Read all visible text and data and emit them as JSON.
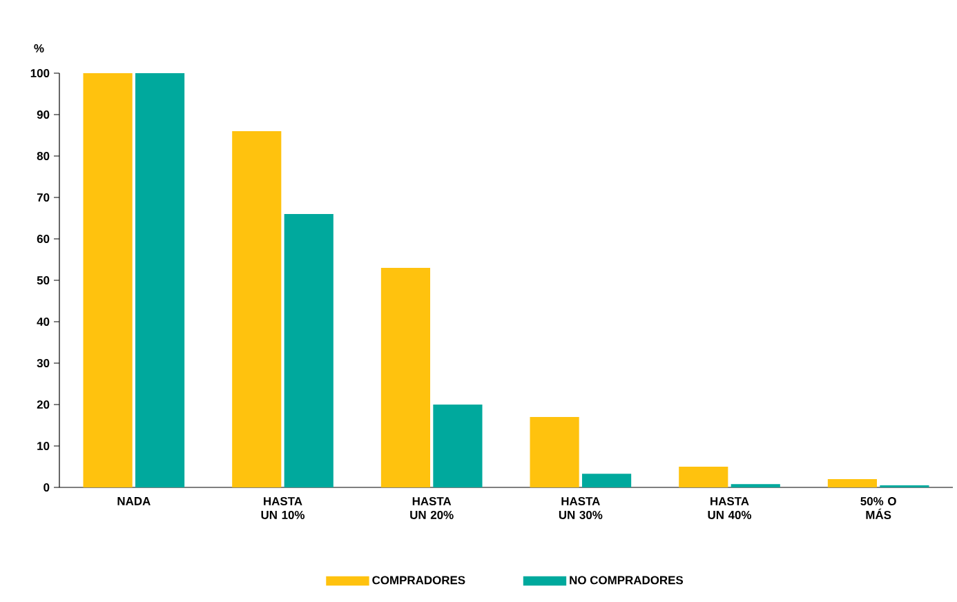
{
  "chart_data": {
    "type": "bar",
    "ylabel": "%",
    "categories": [
      "NADA",
      "HASTA UN 10%",
      "HASTA UN 20%",
      "HASTA UN 30%",
      "HASTA UN 40%",
      "50% O MÁS"
    ],
    "series": [
      {
        "name": "COMPRADORES",
        "color": "#ffc20e",
        "values": [
          100,
          86,
          53,
          17,
          5,
          2
        ]
      },
      {
        "name": "NO COMPRADORES",
        "color": "#00a99d",
        "values": [
          100,
          66,
          20,
          3.3,
          0.8,
          0.5
        ]
      }
    ],
    "ylim": [
      0,
      100
    ],
    "yticks": [
      0,
      10,
      20,
      30,
      40,
      50,
      60,
      70,
      80,
      90,
      100
    ],
    "legend": "bottom"
  }
}
